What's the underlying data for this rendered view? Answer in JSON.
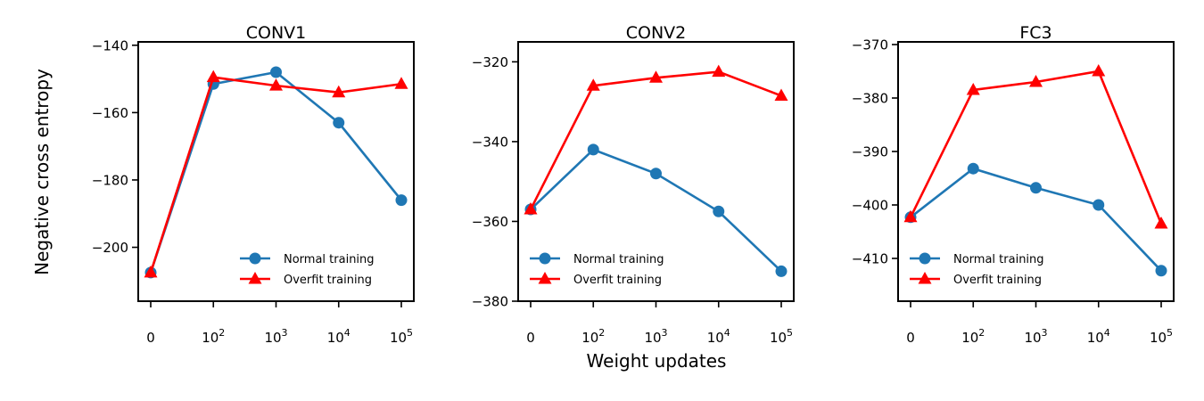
{
  "figure": {
    "ylabel": "Negative cross entropy",
    "xlabel": "Weight updates"
  },
  "legend": {
    "normal_label": "Normal training",
    "overfit_label": "Overfit training",
    "normal_color": "#1f77b4",
    "overfit_color": "#ff0000"
  },
  "chart_data": [
    {
      "type": "line",
      "title": "CONV1",
      "x_ticks": [
        "0",
        "10^2",
        "10^3",
        "10^4",
        "10^5"
      ],
      "ylim": [
        -216,
        -139
      ],
      "y_ticks": [
        -140,
        -160,
        -180,
        -200
      ],
      "legend_position": "lower-right",
      "series": [
        {
          "name": "Normal training",
          "values": [
            -207.5,
            -151.5,
            -148,
            -163,
            -186
          ]
        },
        {
          "name": "Overfit training",
          "values": [
            -207.5,
            -149.5,
            -152,
            -154,
            -151.5
          ]
        }
      ]
    },
    {
      "type": "line",
      "title": "CONV2",
      "x_ticks": [
        "0",
        "10^2",
        "10^3",
        "10^4",
        "10^5"
      ],
      "ylim": [
        -380,
        -315
      ],
      "y_ticks": [
        -320,
        -340,
        -360,
        -380
      ],
      "legend_position": "lower-left",
      "series": [
        {
          "name": "Normal training",
          "values": [
            -357,
            -342,
            -348,
            -357.5,
            -372.5
          ]
        },
        {
          "name": "Overfit training",
          "values": [
            -357,
            -326,
            -324,
            -322.5,
            -328.5
          ]
        }
      ]
    },
    {
      "type": "line",
      "title": "FC3",
      "x_ticks": [
        "0",
        "10^2",
        "10^3",
        "10^4",
        "10^5"
      ],
      "ylim": [
        -418,
        -369.5
      ],
      "y_ticks": [
        -370,
        -380,
        -390,
        -400,
        -410
      ],
      "legend_position": "lower-left",
      "series": [
        {
          "name": "Normal training",
          "values": [
            -402.3,
            -393.2,
            -396.8,
            -400,
            -412.3
          ]
        },
        {
          "name": "Overfit training",
          "values": [
            -402.3,
            -378.5,
            -377,
            -375,
            -403.5
          ]
        }
      ]
    }
  ]
}
